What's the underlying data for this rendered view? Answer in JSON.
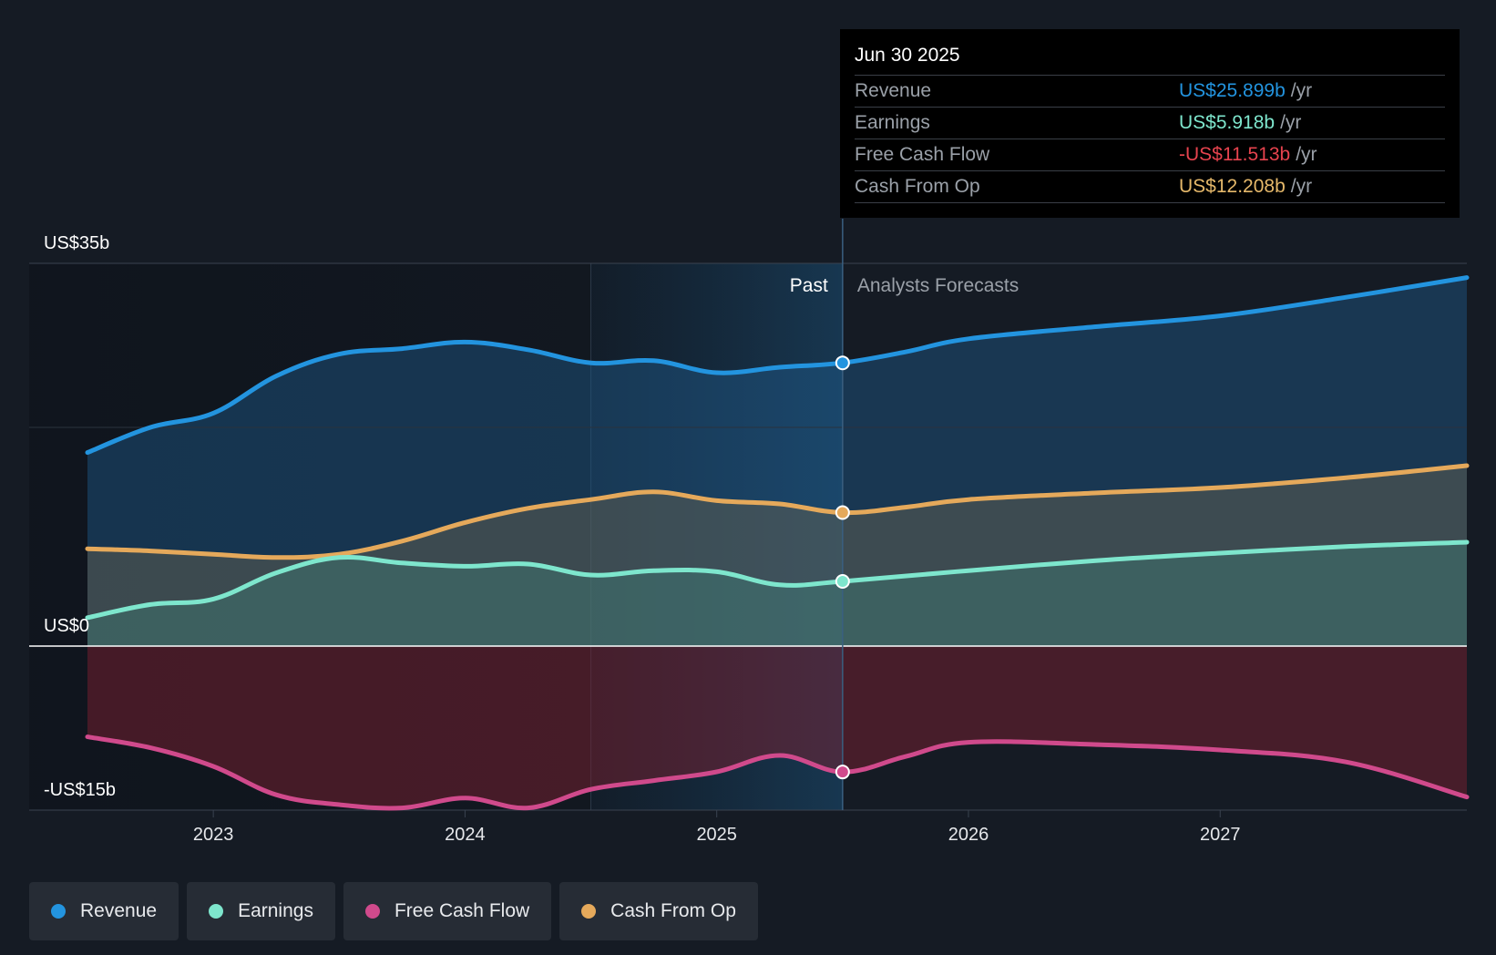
{
  "chart_data": {
    "type": "area",
    "x_ticks": [
      "2023",
      "2024",
      "2025",
      "2026",
      "2027"
    ],
    "y_axis_labels": [
      {
        "value": 35,
        "label": "US$35b"
      },
      {
        "value": 0,
        "label": "US$0"
      },
      {
        "value": -15,
        "label": "-US$15b"
      }
    ],
    "ylim": [
      -15,
      35
    ],
    "xlim": [
      2022.5,
      2027.98
    ],
    "past_label": "Past",
    "forecast_label": "Analysts Forecasts",
    "past_boundary": 2025.5,
    "highlight_start": 2024.5,
    "series": [
      {
        "name": "Revenue",
        "color": "#2394df",
        "points": [
          [
            2022.5,
            17.7
          ],
          [
            2022.75,
            20
          ],
          [
            2023,
            21.3
          ],
          [
            2023.25,
            24.7
          ],
          [
            2023.5,
            26.7
          ],
          [
            2023.75,
            27.2
          ],
          [
            2024,
            27.8
          ],
          [
            2024.25,
            27.1
          ],
          [
            2024.5,
            25.9
          ],
          [
            2024.75,
            26.1
          ],
          [
            2025,
            25
          ],
          [
            2025.25,
            25.5
          ],
          [
            2025.5,
            25.899
          ],
          [
            2025.75,
            26.9
          ],
          [
            2026,
            28.1
          ],
          [
            2026.5,
            29.2
          ],
          [
            2027,
            30.2
          ],
          [
            2027.5,
            31.9
          ],
          [
            2027.98,
            33.7
          ]
        ]
      },
      {
        "name": "Cash From Op",
        "color": "#e5a95b",
        "points": [
          [
            2022.5,
            8.9
          ],
          [
            2022.75,
            8.7
          ],
          [
            2023,
            8.4
          ],
          [
            2023.25,
            8.1
          ],
          [
            2023.5,
            8.4
          ],
          [
            2023.75,
            9.6
          ],
          [
            2024,
            11.3
          ],
          [
            2024.25,
            12.6
          ],
          [
            2024.5,
            13.4
          ],
          [
            2024.75,
            14.1
          ],
          [
            2025,
            13.3
          ],
          [
            2025.25,
            13
          ],
          [
            2025.5,
            12.208
          ],
          [
            2025.75,
            12.7
          ],
          [
            2026,
            13.4
          ],
          [
            2026.5,
            14
          ],
          [
            2027,
            14.5
          ],
          [
            2027.5,
            15.4
          ],
          [
            2027.98,
            16.5
          ]
        ]
      },
      {
        "name": "Earnings",
        "color": "#7ee6cd",
        "points": [
          [
            2022.5,
            2.6
          ],
          [
            2022.75,
            3.8
          ],
          [
            2023,
            4.3
          ],
          [
            2023.25,
            6.7
          ],
          [
            2023.5,
            8.1
          ],
          [
            2023.75,
            7.6
          ],
          [
            2024,
            7.3
          ],
          [
            2024.25,
            7.5
          ],
          [
            2024.5,
            6.5
          ],
          [
            2024.75,
            6.9
          ],
          [
            2025,
            6.8
          ],
          [
            2025.25,
            5.6
          ],
          [
            2025.5,
            5.918
          ],
          [
            2026,
            6.9
          ],
          [
            2026.5,
            7.8
          ],
          [
            2027,
            8.5
          ],
          [
            2027.5,
            9.1
          ],
          [
            2027.98,
            9.5
          ]
        ]
      },
      {
        "name": "Free Cash Flow",
        "color": "#d04a8c",
        "points": [
          [
            2022.5,
            -8.3
          ],
          [
            2022.75,
            -9.3
          ],
          [
            2023,
            -11
          ],
          [
            2023.25,
            -13.6
          ],
          [
            2023.5,
            -14.5
          ],
          [
            2023.75,
            -14.8
          ],
          [
            2024,
            -13.9
          ],
          [
            2024.25,
            -14.8
          ],
          [
            2024.5,
            -13.1
          ],
          [
            2024.75,
            -12.3
          ],
          [
            2025,
            -11.5
          ],
          [
            2025.25,
            -10
          ],
          [
            2025.5,
            -11.513
          ],
          [
            2025.75,
            -10.1
          ],
          [
            2026,
            -8.8
          ],
          [
            2026.5,
            -9
          ],
          [
            2027,
            -9.5
          ],
          [
            2027.5,
            -10.6
          ],
          [
            2027.98,
            -13.8
          ]
        ]
      }
    ]
  },
  "tooltip": {
    "date": "Jun 30 2025",
    "rows": [
      {
        "name": "Revenue",
        "value": "US$25.899b",
        "unit": "/yr",
        "color": "#2394df"
      },
      {
        "name": "Earnings",
        "value": "US$5.918b",
        "unit": "/yr",
        "color": "#7ee6cd"
      },
      {
        "name": "Free Cash Flow",
        "value": "-US$11.513b",
        "unit": "/yr",
        "color": "#e6434e"
      },
      {
        "name": "Cash From Op",
        "value": "US$12.208b",
        "unit": "/yr",
        "color": "#e5b86a"
      }
    ]
  },
  "legend": [
    {
      "label": "Revenue",
      "color": "#2394df"
    },
    {
      "label": "Earnings",
      "color": "#7ee6cd"
    },
    {
      "label": "Free Cash Flow",
      "color": "#d04a8c"
    },
    {
      "label": "Cash From Op",
      "color": "#e5a95b"
    }
  ]
}
